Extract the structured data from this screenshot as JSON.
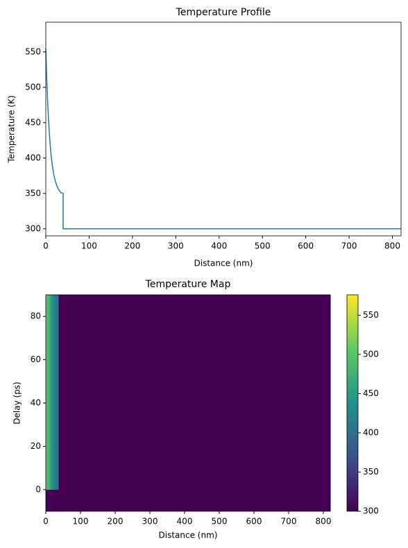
{
  "chart_data": [
    {
      "type": "line",
      "title": "Temperature Profile",
      "xlabel": "Distance (nm)",
      "ylabel": "Temperature (K)",
      "x": [
        0,
        2,
        4,
        6,
        8,
        10,
        12,
        15,
        18,
        22,
        26,
        30,
        35,
        40,
        40,
        820
      ],
      "values": [
        555,
        515,
        483,
        458,
        437,
        420,
        405,
        390,
        378,
        367,
        360,
        355,
        351,
        350,
        300,
        300
      ],
      "color": "#1f77b4",
      "xlim": [
        0,
        820
      ],
      "xticks": [
        0,
        100,
        200,
        300,
        400,
        500,
        600,
        700,
        800
      ],
      "ylim": [
        290,
        592
      ],
      "yticks": [
        300,
        350,
        400,
        450,
        500,
        550
      ]
    },
    {
      "type": "heatmap",
      "title": "Temperature Map",
      "xlabel": "Distance (nm)",
      "ylabel": "Delay (ps)",
      "x_edges": [
        0,
        5,
        10,
        15,
        20,
        25,
        30,
        37,
        820
      ],
      "y_edges": [
        -10,
        0,
        90
      ],
      "z": [
        [
          300,
          300,
          300,
          300,
          300,
          300,
          300,
          300
        ],
        [
          500,
          485,
          465,
          445,
          430,
          418,
          408,
          300
        ]
      ],
      "colormap": "viridis",
      "xlim": [
        0,
        820
      ],
      "xticks": [
        0,
        100,
        200,
        300,
        400,
        500,
        600,
        700,
        800
      ],
      "ylim": [
        -10,
        90
      ],
      "yticks": [
        0,
        20,
        40,
        60,
        80
      ],
      "colorbar_lim": [
        300,
        576
      ],
      "colorbar_ticks": [
        300,
        350,
        400,
        450,
        500,
        550
      ]
    }
  ]
}
